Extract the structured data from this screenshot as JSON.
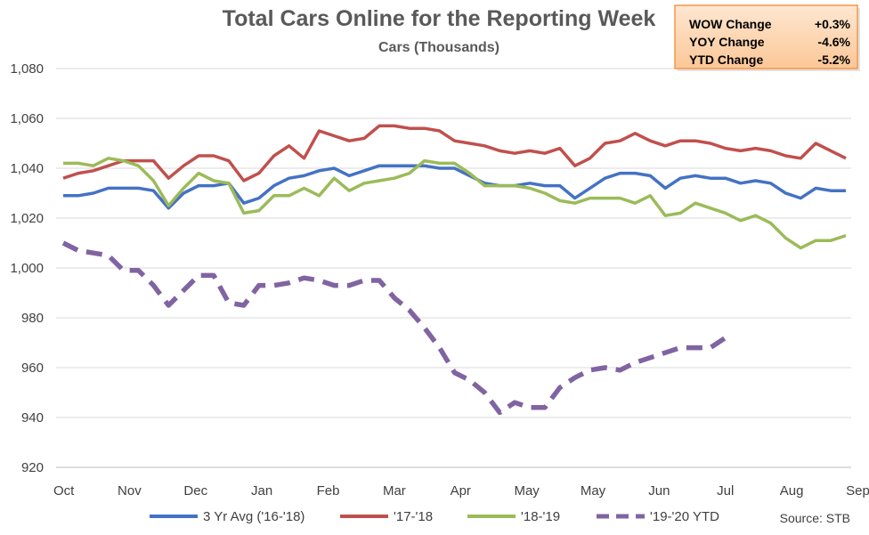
{
  "chart_data": {
    "type": "line",
    "title": "Total Cars Online for the Reporting Week",
    "subtitle": "Cars (Thousands)",
    "ylim": [
      920,
      1080
    ],
    "yticks": [
      920,
      940,
      960,
      980,
      1000,
      1020,
      1040,
      1060,
      1080
    ],
    "ytick_labels": [
      "920",
      "940",
      "960",
      "980",
      "1,000",
      "1,020",
      "1,040",
      "1,060",
      "1,080"
    ],
    "xtick_labels": [
      "Oct",
      "Nov",
      "Dec",
      "Jan",
      "Feb",
      "Mar",
      "Apr",
      "May",
      "May",
      "Jun",
      "Jul",
      "Aug",
      "Sep"
    ],
    "xtick_weeks": [
      0,
      4.4,
      8.8,
      13.2,
      17.6,
      22,
      26.4,
      30.8,
      35.2,
      39.6,
      44,
      48.4,
      52.8
    ],
    "weeks": 53,
    "grid": true,
    "legend_position": "bottom",
    "series": [
      {
        "name": "3 Yr Avg ('16-'18)",
        "color": "#4472C4",
        "style": "solid",
        "values": [
          1029,
          1029,
          1030,
          1032,
          1032,
          1032,
          1031,
          1024,
          1030,
          1033,
          1033,
          1034,
          1026,
          1028,
          1033,
          1036,
          1037,
          1039,
          1040,
          1037,
          1039,
          1041,
          1041,
          1041,
          1041,
          1040,
          1040,
          1037,
          1034,
          1033,
          1033,
          1034,
          1033,
          1033,
          1028,
          1032,
          1036,
          1038,
          1038,
          1037,
          1032,
          1036,
          1037,
          1036,
          1036,
          1034,
          1035,
          1034,
          1030,
          1028,
          1032,
          1031,
          1031
        ]
      },
      {
        "name": "'17-'18",
        "color": "#C0504D",
        "style": "solid",
        "values": [
          1036,
          1038,
          1039,
          1041,
          1043,
          1043,
          1043,
          1036,
          1041,
          1045,
          1045,
          1043,
          1035,
          1038,
          1045,
          1049,
          1044,
          1055,
          1053,
          1051,
          1052,
          1057,
          1057,
          1056,
          1056,
          1055,
          1051,
          1050,
          1049,
          1047,
          1046,
          1047,
          1046,
          1048,
          1041,
          1044,
          1050,
          1051,
          1054,
          1051,
          1049,
          1051,
          1051,
          1050,
          1048,
          1047,
          1048,
          1047,
          1045,
          1044,
          1050,
          1047,
          1044
        ]
      },
      {
        "name": "'18-'19",
        "color": "#9BBB59",
        "style": "solid",
        "values": [
          1042,
          1042,
          1041,
          1044,
          1043,
          1041,
          1035,
          1025,
          1032,
          1038,
          1035,
          1034,
          1022,
          1023,
          1029,
          1029,
          1032,
          1029,
          1036,
          1031,
          1034,
          1035,
          1036,
          1038,
          1043,
          1042,
          1042,
          1038,
          1033,
          1033,
          1033,
          1032,
          1030,
          1027,
          1026,
          1028,
          1028,
          1028,
          1026,
          1029,
          1021,
          1022,
          1026,
          1024,
          1022,
          1019,
          1021,
          1018,
          1012,
          1008,
          1011,
          1011,
          1013
        ]
      },
      {
        "name": "'19-'20 YTD",
        "color": "#8064A2",
        "style": "dashed",
        "values": [
          1010,
          1007,
          1006,
          1005,
          999,
          999,
          993,
          985,
          991,
          997,
          997,
          986,
          985,
          993,
          993,
          994,
          996,
          995,
          993,
          993,
          995,
          995,
          988,
          983,
          976,
          968,
          958,
          955,
          950,
          942,
          946,
          944,
          944,
          952,
          956,
          959,
          960,
          959,
          962,
          964,
          966,
          968,
          968,
          968,
          972
        ]
      }
    ],
    "source": "Source:  STB"
  },
  "stats_box": {
    "rows": [
      {
        "label": "WOW Change",
        "value": "+0.3%"
      },
      {
        "label": "YOY Change",
        "value": "-4.6%"
      },
      {
        "label": "YTD Change",
        "value": "-5.2%"
      }
    ],
    "bg_color": "#FDD7B0",
    "border_color": "#F79646"
  }
}
